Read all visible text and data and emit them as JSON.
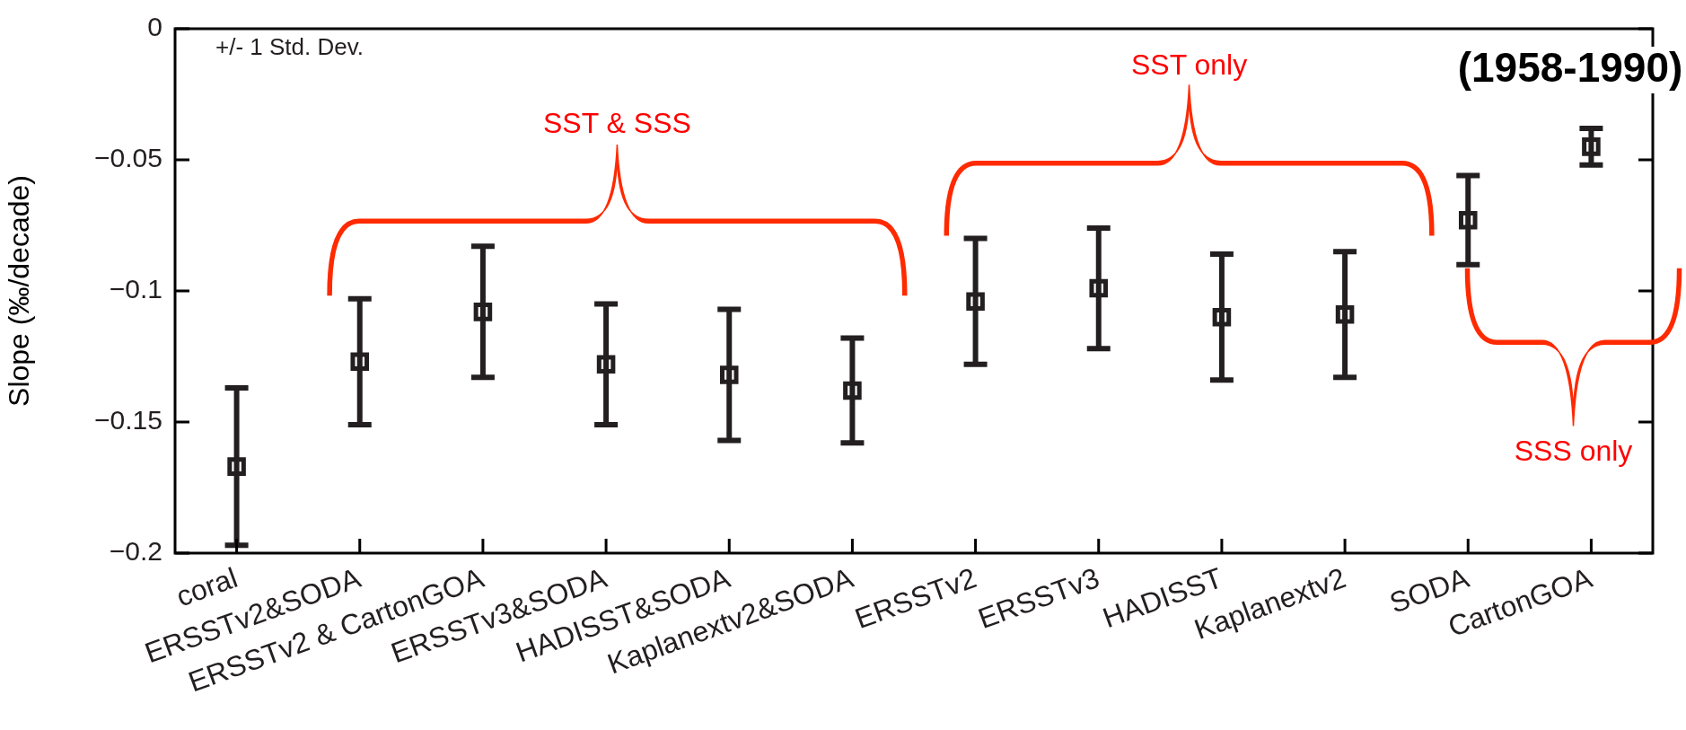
{
  "chart_data": {
    "type": "scatter",
    "ylabel": "Slope (‰/decade)",
    "marker": "square",
    "grid": false,
    "legend": false,
    "categories": [
      "coral",
      "ERSSTv2&SODA",
      "ERSSTv2 & CartonGOA",
      "ERSSTv3&SODA",
      "HADISST&SODA",
      "Kaplanextv2&SODA",
      "ERSSTv2",
      "ERSSTv3",
      "HADISST",
      "Kaplanextv2",
      "SODA",
      "CartonGOA"
    ],
    "series": [
      {
        "color": "#231f20",
        "values": [
          -0.167,
          -0.127,
          -0.108,
          -0.128,
          -0.132,
          -0.138,
          -0.104,
          -0.099,
          -0.11,
          -0.109,
          -0.073,
          -0.045
        ],
        "errors": [
          0.03,
          0.024,
          0.025,
          0.023,
          0.025,
          0.02,
          0.024,
          0.023,
          0.024,
          0.024,
          0.017,
          0.007
        ]
      }
    ],
    "ylim": [
      -0.2,
      0
    ],
    "yticks": [
      {
        "value": -0.2,
        "label": "−0.2"
      },
      {
        "value": -0.15,
        "label": "−0.15"
      },
      {
        "value": -0.1,
        "label": "−0.1"
      },
      {
        "value": -0.05,
        "label": "−0.05"
      },
      0
    ],
    "annotations": [
      "+/- 1 Std. Dev.",
      "SST & SSS",
      "SST only",
      "SSS only",
      "(1958-1990)"
    ]
  }
}
